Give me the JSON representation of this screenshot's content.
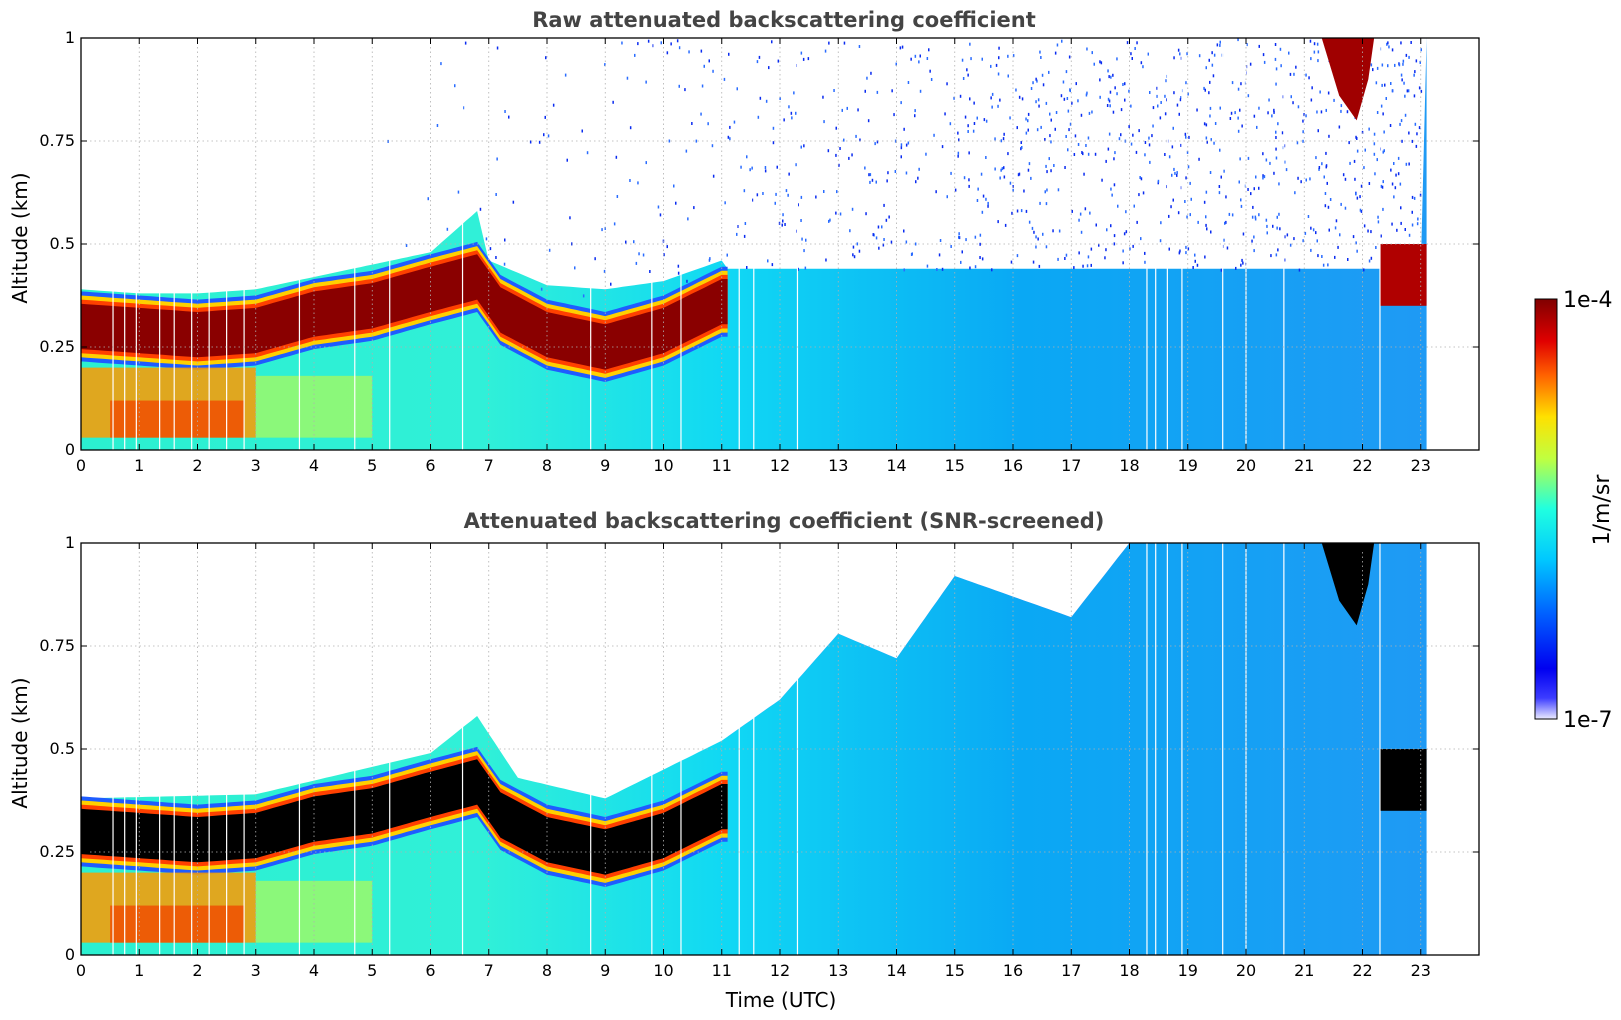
{
  "figure": {
    "xlabel": "Time (UTC)",
    "colorbar": {
      "label": "1/m/sr",
      "max_label": "1e-4",
      "min_label": "1e-7",
      "scale": "log",
      "colormap": "jet"
    }
  },
  "chart_data": [
    {
      "type": "heatmap",
      "title": "Raw attenuated backscattering coefficient",
      "xlabel": "",
      "ylabel": "Altitude (km)",
      "xlim": [
        0,
        24
      ],
      "ylim": [
        0,
        1
      ],
      "x_ticks": [
        "0",
        "1",
        "2",
        "3",
        "4",
        "5",
        "6",
        "7",
        "8",
        "9",
        "10",
        "11",
        "12",
        "13",
        "14",
        "15",
        "16",
        "17",
        "18",
        "19",
        "20",
        "21",
        "22",
        "23"
      ],
      "y_ticks": [
        "0",
        "0.25",
        "0.5",
        "0.75",
        "1"
      ],
      "y_tick_values": [
        0,
        0.25,
        0.5,
        0.75,
        1
      ],
      "grid": true,
      "data_end_hour": 23.1,
      "layer_top_km": [
        {
          "x": 0,
          "y": 0.37
        },
        {
          "x": 1,
          "y": 0.36
        },
        {
          "x": 2,
          "y": 0.36
        },
        {
          "x": 3,
          "y": 0.37
        },
        {
          "x": 4,
          "y": 0.4
        },
        {
          "x": 5,
          "y": 0.43
        },
        {
          "x": 6,
          "y": 0.46
        },
        {
          "x": 6.8,
          "y": 0.56
        },
        {
          "x": 7,
          "y": 0.44
        },
        {
          "x": 8,
          "y": 0.38
        },
        {
          "x": 9,
          "y": 0.37
        },
        {
          "x": 10,
          "y": 0.39
        },
        {
          "x": 11,
          "y": 0.44
        }
      ],
      "gaps_hours": [
        0.55,
        0.75,
        0.95,
        1.35,
        1.6,
        1.9,
        2.2,
        2.5,
        2.8,
        3.75,
        4.7,
        5.3,
        6.55,
        8.75,
        9.8,
        10.3,
        11.3,
        11.55,
        12.3,
        18.3,
        18.45,
        18.65,
        18.9,
        19.6,
        20.0,
        20.65,
        22.3
      ]
    },
    {
      "type": "heatmap",
      "title": "Attenuated backscattering coefficient (SNR-screened)",
      "xlabel": "Time (UTC)",
      "ylabel": "Altitude (km)",
      "xlim": [
        0,
        24
      ],
      "ylim": [
        0,
        1
      ],
      "x_ticks": [
        "0",
        "1",
        "2",
        "3",
        "4",
        "5",
        "6",
        "7",
        "8",
        "9",
        "10",
        "11",
        "12",
        "13",
        "14",
        "15",
        "16",
        "17",
        "18",
        "19",
        "20",
        "21",
        "22",
        "23"
      ],
      "y_ticks": [
        "0",
        "0.25",
        "0.5",
        "0.75",
        "1"
      ],
      "y_tick_values": [
        0,
        0.25,
        0.5,
        0.75,
        1
      ],
      "grid": true,
      "data_end_hour": 23.1,
      "screen_top_km": [
        {
          "x": 0,
          "y": 0.38
        },
        {
          "x": 3,
          "y": 0.39
        },
        {
          "x": 6,
          "y": 0.49
        },
        {
          "x": 6.8,
          "y": 0.58
        },
        {
          "x": 7.5,
          "y": 0.43
        },
        {
          "x": 9,
          "y": 0.38
        },
        {
          "x": 11,
          "y": 0.52
        },
        {
          "x": 12,
          "y": 0.62
        },
        {
          "x": 13,
          "y": 0.78
        },
        {
          "x": 14,
          "y": 0.72
        },
        {
          "x": 15,
          "y": 0.92
        },
        {
          "x": 17,
          "y": 0.82
        },
        {
          "x": 18,
          "y": 1.0
        }
      ],
      "gaps_hours": [
        0.55,
        0.75,
        0.95,
        1.35,
        1.6,
        1.9,
        2.2,
        2.5,
        2.8,
        3.75,
        4.7,
        5.3,
        6.55,
        8.75,
        9.8,
        10.3,
        11.3,
        11.55,
        12.3,
        18.3,
        18.45,
        18.65,
        18.9,
        19.6,
        20.0,
        20.65,
        22.3
      ]
    }
  ]
}
